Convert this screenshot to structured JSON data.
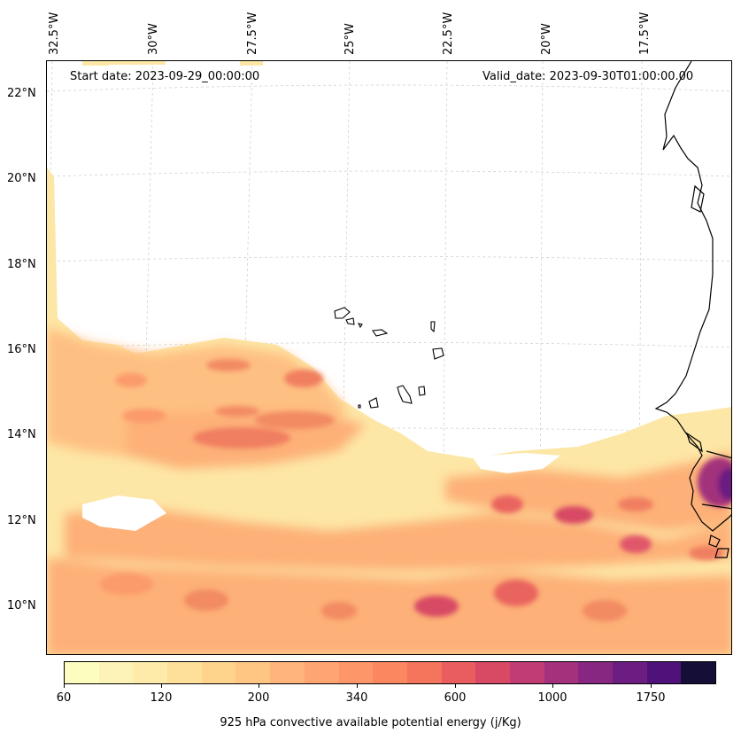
{
  "map": {
    "longitude_labels": [
      "32.5°W",
      "30°W",
      "27.5°W",
      "25°W",
      "22.5°W",
      "20°W",
      "17.5°W"
    ],
    "latitude_labels": [
      "22°N",
      "20°N",
      "18°N",
      "16°N",
      "14°N",
      "12°N",
      "10°N"
    ],
    "start_date": "Start date: 2023-09-29_00:00:00",
    "valid_date": "Valid_date: 2023-09-30T01:00:00.00"
  },
  "colorbar": {
    "tick_labels": [
      "60",
      "120",
      "200",
      "340",
      "600",
      "1000",
      "1750"
    ],
    "title": "925 hPa convective available potential energy (j/Kg)",
    "colors": [
      "#fcfdbf",
      "#fdf3b6",
      "#feeaa9",
      "#fee09b",
      "#fed48c",
      "#fec583",
      "#feb47b",
      "#fea572",
      "#fd9669",
      "#fb8761",
      "#f4745c",
      "#e95d5e",
      "#d84964",
      "#c13b74",
      "#a3317c",
      "#872781",
      "#6b1d81",
      "#4f127b",
      "#150e37"
    ]
  }
}
